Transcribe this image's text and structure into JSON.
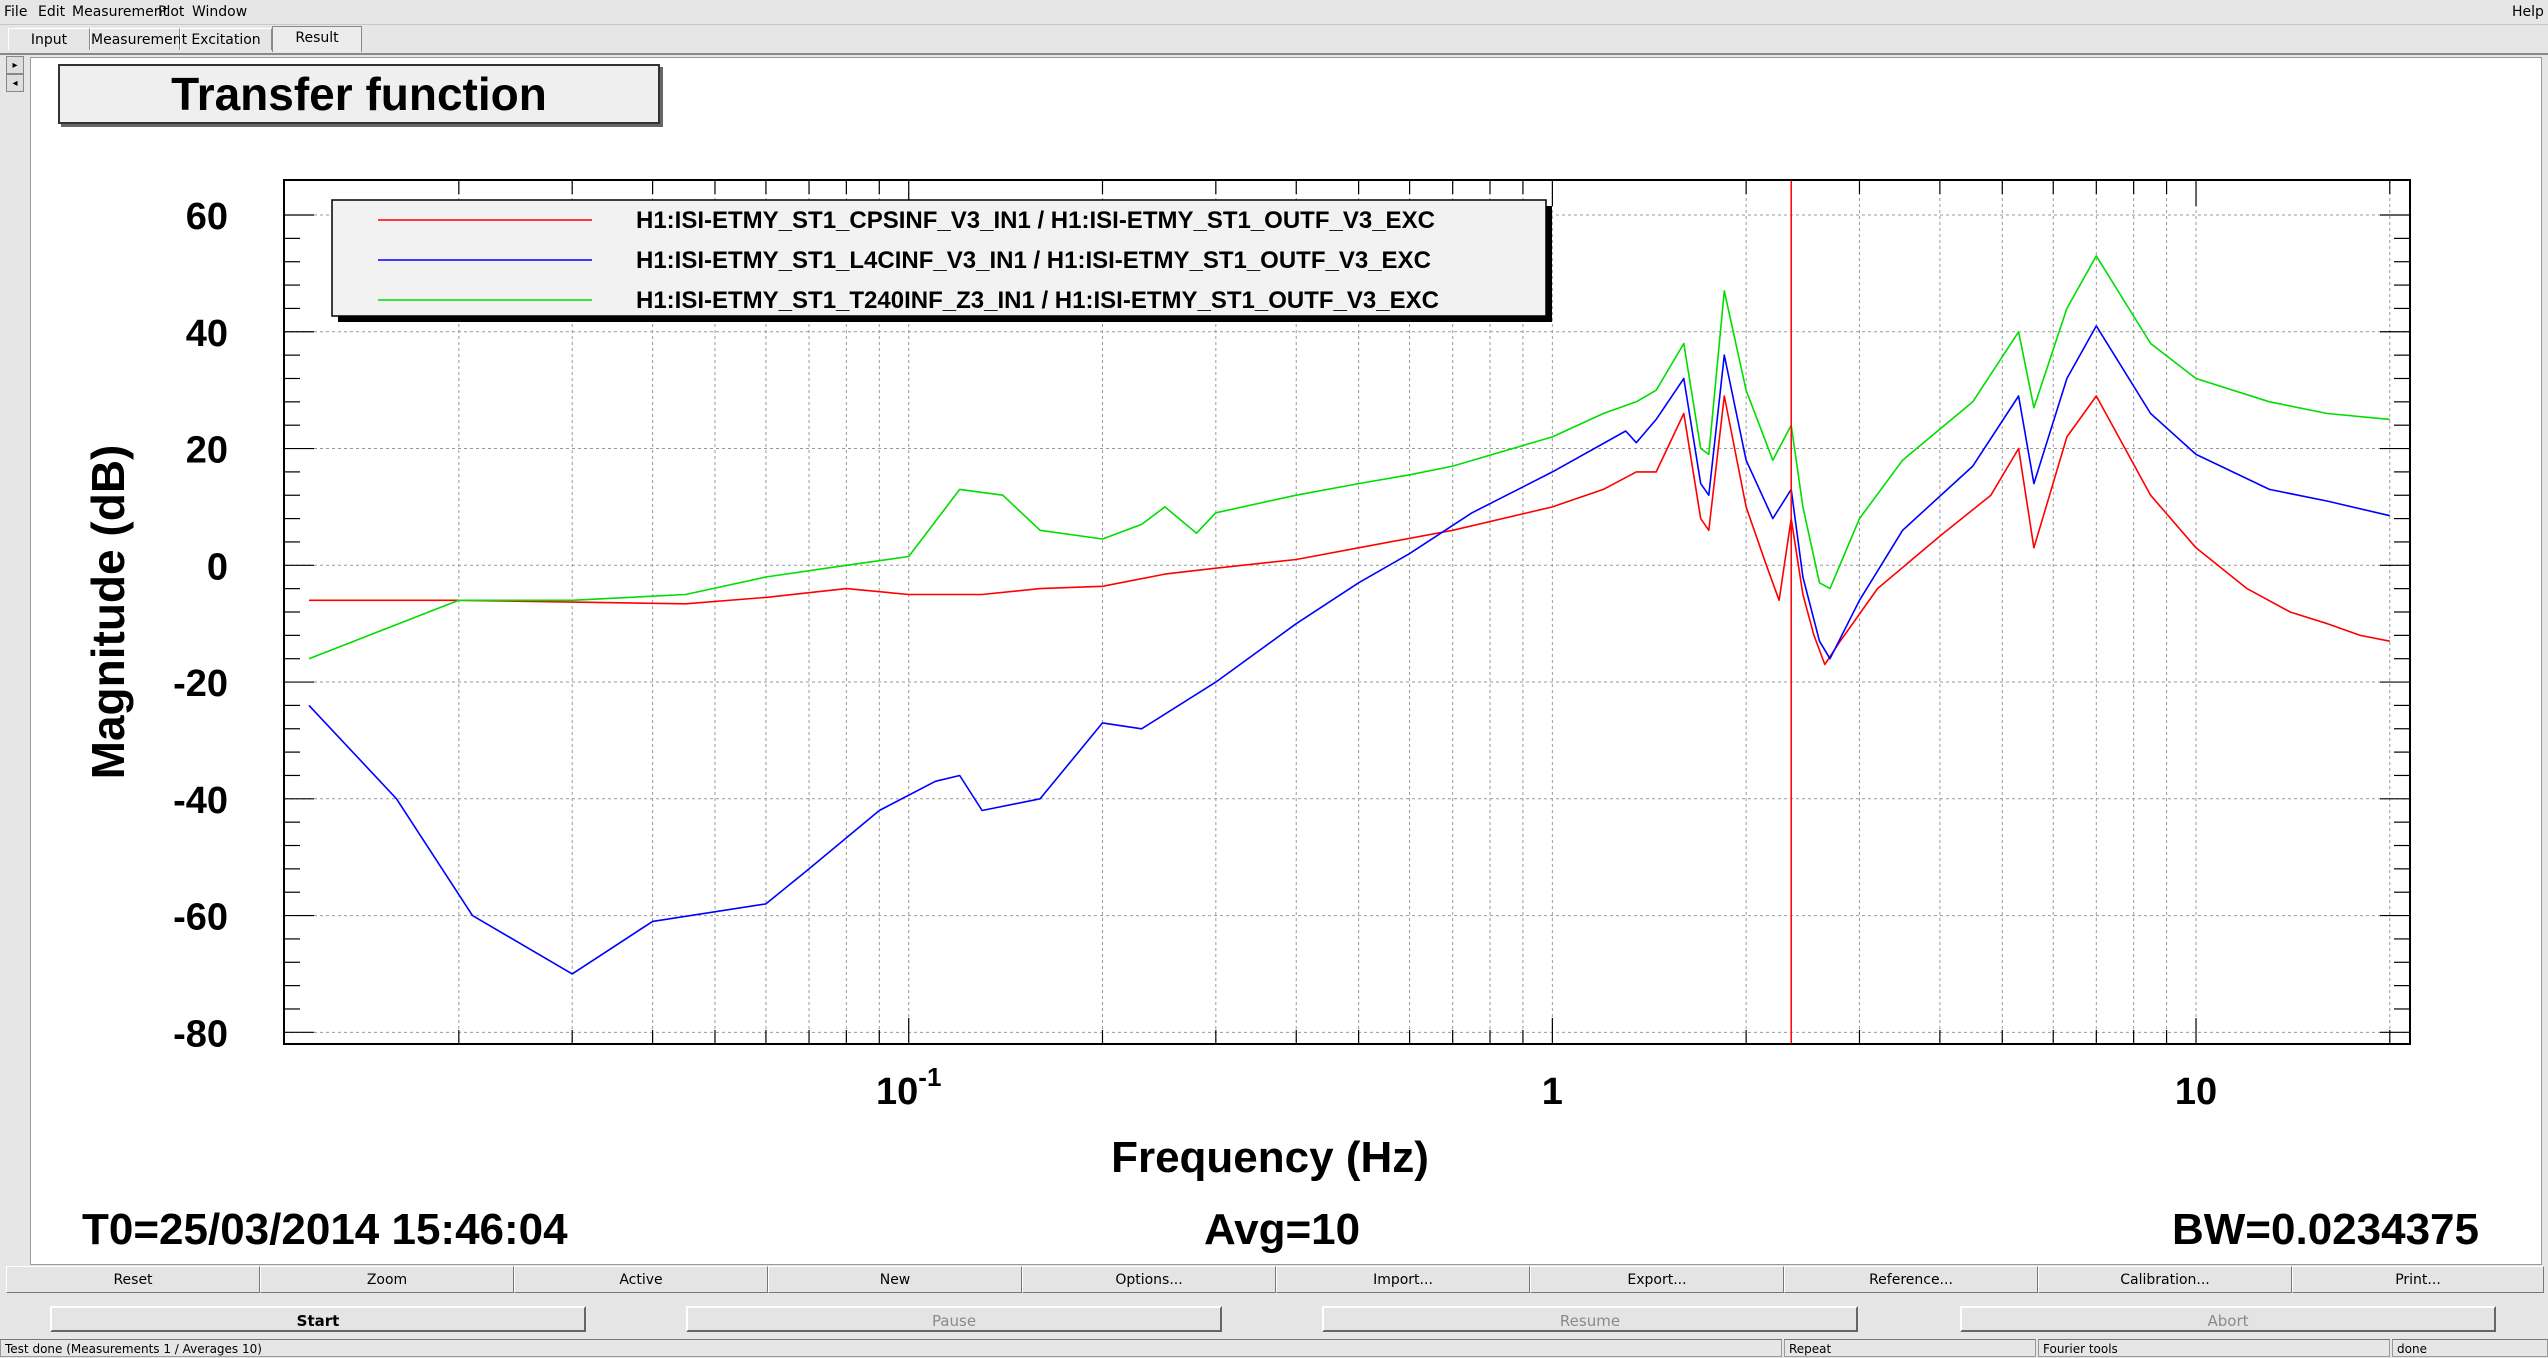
{
  "menubar": {
    "items": [
      "File",
      "Edit",
      "Measurement",
      "Plot",
      "Window"
    ],
    "help": "Help"
  },
  "tabs": [
    "Input",
    "Measurement",
    "Excitation",
    "Result"
  ],
  "active_tab": "Result",
  "plot": {
    "title": "Transfer function",
    "footer": {
      "t0": "T0=25/03/2014 15:46:04",
      "avg": "Avg=10",
      "bw": "BW=0.0234375"
    }
  },
  "chart_data": {
    "type": "line",
    "title": "Transfer function",
    "xlabel": "Frequency (Hz)",
    "ylabel": "Magnitude (dB)",
    "xscale": "log",
    "xlim": [
      0.0107,
      21.5
    ],
    "ylim": [
      -82,
      66
    ],
    "x_tick_labels": [
      {
        "value": 0.1,
        "base": "10",
        "exp": "-1"
      },
      {
        "value": 1,
        "base": "1",
        "exp": ""
      },
      {
        "value": 10,
        "base": "10",
        "exp": ""
      }
    ],
    "y_ticks": [
      60,
      40,
      20,
      0,
      -20,
      -40,
      -60,
      -80
    ],
    "y_tick_labels": [
      "60",
      "40",
      "20",
      "0",
      "-20",
      "-40",
      "-60",
      "-80"
    ],
    "grid": true,
    "legend_position": "top-left",
    "cursor_x": 2.35,
    "series": [
      {
        "name": "H1:ISI-ETMY_ST1_CPSINF_V3_IN1 / H1:ISI-ETMY_ST1_OUTF_V3_EXC",
        "color": "#ff0000",
        "points": [
          [
            0.0117,
            -6
          ],
          [
            0.02,
            -6
          ],
          [
            0.03,
            -6.3
          ],
          [
            0.045,
            -6.6
          ],
          [
            0.06,
            -5.5
          ],
          [
            0.08,
            -4
          ],
          [
            0.1,
            -5
          ],
          [
            0.13,
            -5
          ],
          [
            0.16,
            -4
          ],
          [
            0.2,
            -3.6
          ],
          [
            0.25,
            -1.5
          ],
          [
            0.3,
            -0.5
          ],
          [
            0.4,
            1
          ],
          [
            0.5,
            3
          ],
          [
            0.7,
            6
          ],
          [
            1.0,
            10
          ],
          [
            1.2,
            13
          ],
          [
            1.35,
            16
          ],
          [
            1.45,
            16
          ],
          [
            1.6,
            26
          ],
          [
            1.7,
            8
          ],
          [
            1.75,
            6
          ],
          [
            1.85,
            29
          ],
          [
            2.0,
            10
          ],
          [
            2.15,
            0
          ],
          [
            2.25,
            -6
          ],
          [
            2.35,
            8
          ],
          [
            2.45,
            -5
          ],
          [
            2.55,
            -12
          ],
          [
            2.65,
            -17
          ],
          [
            2.8,
            -13
          ],
          [
            3.2,
            -4
          ],
          [
            4.0,
            5
          ],
          [
            4.8,
            12
          ],
          [
            5.3,
            20
          ],
          [
            5.6,
            3
          ],
          [
            6.3,
            22
          ],
          [
            7.0,
            29
          ],
          [
            8.5,
            12
          ],
          [
            10,
            3
          ],
          [
            12,
            -4
          ],
          [
            14,
            -8
          ],
          [
            16,
            -10
          ],
          [
            18,
            -12
          ],
          [
            20,
            -13
          ]
        ]
      },
      {
        "name": "H1:ISI-ETMY_ST1_L4CINF_V3_IN1 / H1:ISI-ETMY_ST1_OUTF_V3_EXC",
        "color": "#0000ff",
        "points": [
          [
            0.0117,
            -24
          ],
          [
            0.016,
            -40
          ],
          [
            0.021,
            -60
          ],
          [
            0.03,
            -70
          ],
          [
            0.04,
            -61
          ],
          [
            0.06,
            -58
          ],
          [
            0.07,
            -52
          ],
          [
            0.09,
            -42
          ],
          [
            0.11,
            -37
          ],
          [
            0.12,
            -36
          ],
          [
            0.13,
            -42
          ],
          [
            0.16,
            -40
          ],
          [
            0.2,
            -27
          ],
          [
            0.23,
            -28
          ],
          [
            0.3,
            -20
          ],
          [
            0.4,
            -10
          ],
          [
            0.5,
            -3
          ],
          [
            0.6,
            2
          ],
          [
            0.75,
            9
          ],
          [
            1.0,
            16
          ],
          [
            1.3,
            23
          ],
          [
            1.35,
            21
          ],
          [
            1.45,
            25
          ],
          [
            1.6,
            32
          ],
          [
            1.7,
            14
          ],
          [
            1.75,
            12
          ],
          [
            1.85,
            36
          ],
          [
            2.0,
            18
          ],
          [
            2.2,
            8
          ],
          [
            2.35,
            13
          ],
          [
            2.45,
            -2
          ],
          [
            2.6,
            -13
          ],
          [
            2.7,
            -16
          ],
          [
            3.0,
            -6
          ],
          [
            3.5,
            6
          ],
          [
            4.5,
            17
          ],
          [
            5.3,
            29
          ],
          [
            5.6,
            14
          ],
          [
            6.3,
            32
          ],
          [
            7.0,
            41
          ],
          [
            8.5,
            26
          ],
          [
            10,
            19
          ],
          [
            13,
            13
          ],
          [
            16,
            11
          ],
          [
            20,
            8.5
          ]
        ]
      },
      {
        "name": "H1:ISI-ETMY_ST1_T240INF_Z3_IN1 / H1:ISI-ETMY_ST1_OUTF_V3_EXC",
        "color": "#00dd00",
        "points": [
          [
            0.0117,
            -16
          ],
          [
            0.02,
            -6
          ],
          [
            0.03,
            -6
          ],
          [
            0.045,
            -5
          ],
          [
            0.06,
            -2
          ],
          [
            0.08,
            0
          ],
          [
            0.1,
            1.5
          ],
          [
            0.12,
            13
          ],
          [
            0.14,
            12
          ],
          [
            0.16,
            6
          ],
          [
            0.2,
            4.5
          ],
          [
            0.23,
            7
          ],
          [
            0.25,
            10
          ],
          [
            0.28,
            5.5
          ],
          [
            0.3,
            9
          ],
          [
            0.4,
            12
          ],
          [
            0.5,
            14
          ],
          [
            0.6,
            15.5
          ],
          [
            0.7,
            17
          ],
          [
            1.0,
            22
          ],
          [
            1.2,
            26
          ],
          [
            1.35,
            28
          ],
          [
            1.45,
            30
          ],
          [
            1.6,
            38
          ],
          [
            1.7,
            20
          ],
          [
            1.75,
            19
          ],
          [
            1.85,
            47
          ],
          [
            2.0,
            30
          ],
          [
            2.2,
            18
          ],
          [
            2.35,
            24
          ],
          [
            2.45,
            10
          ],
          [
            2.6,
            -3
          ],
          [
            2.7,
            -4
          ],
          [
            3.0,
            8
          ],
          [
            3.5,
            18
          ],
          [
            4.5,
            28
          ],
          [
            5.3,
            40
          ],
          [
            5.6,
            27
          ],
          [
            6.3,
            44
          ],
          [
            7.0,
            53
          ],
          [
            8.5,
            38
          ],
          [
            10,
            32
          ],
          [
            13,
            28
          ],
          [
            16,
            26
          ],
          [
            20,
            25
          ]
        ]
      }
    ]
  },
  "buttons_row1": [
    "Reset",
    "Zoom",
    "Active",
    "New",
    "Options...",
    "Import...",
    "Export...",
    "Reference...",
    "Calibration...",
    "Print..."
  ],
  "buttons_row2": {
    "start": "Start",
    "pause": "Pause",
    "resume": "Resume",
    "abort": "Abort"
  },
  "statusbar": {
    "message": "Test done (Measurements 1 / Averages 10)",
    "repeat": "Repeat",
    "tool": "Fourier tools",
    "state": "done"
  }
}
